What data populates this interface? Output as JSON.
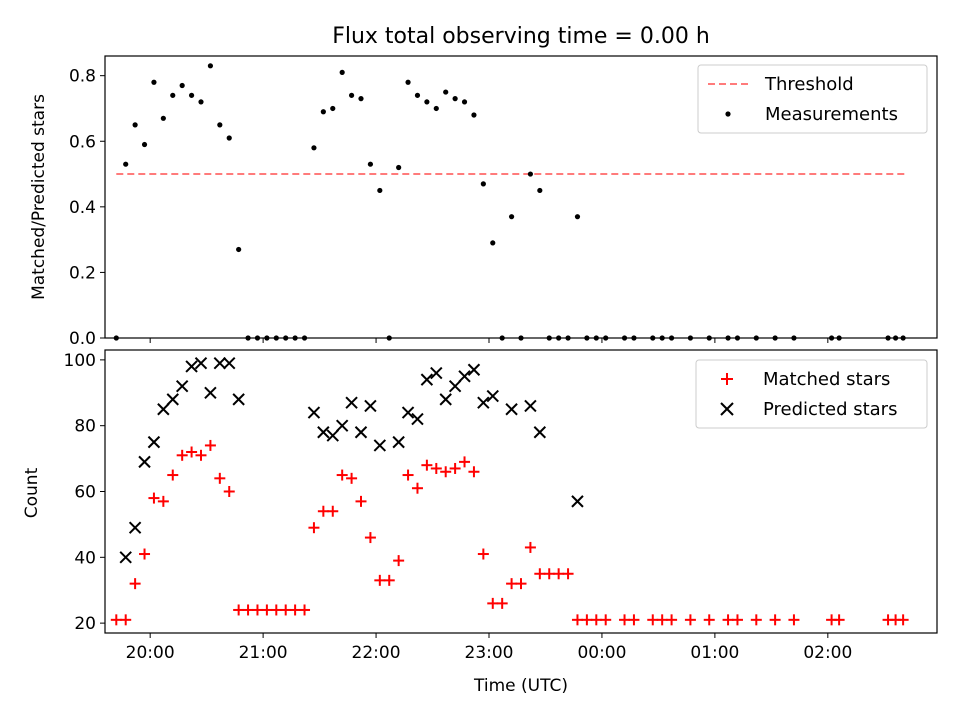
{
  "chart_data": [
    {
      "type": "scatter",
      "title": "Flux total observing time = 0.00 h",
      "ylabel": "Matched/Predicted stars",
      "ylim": [
        0,
        0.86
      ],
      "yticks": [
        "0.0",
        "0.2",
        "0.4",
        "0.6",
        "0.8"
      ],
      "legend_position": "top-right",
      "threshold": {
        "name": "Threshold",
        "value": 0.5,
        "x_start": "19:42",
        "x_end": "02:41",
        "color": "#ff7b7b",
        "style": "dashed"
      },
      "series": [
        {
          "name": "Measurements",
          "color": "#000000",
          "x": [
            "19:42",
            "19:47",
            "19:52",
            "19:57",
            "20:02",
            "20:07",
            "20:12",
            "20:17",
            "20:22",
            "20:27",
            "20:32",
            "20:37",
            "20:42",
            "20:47",
            "20:52",
            "20:57",
            "21:02",
            "21:07",
            "21:12",
            "21:17",
            "21:22",
            "21:27",
            "21:32",
            "21:37",
            "21:42",
            "21:47",
            "21:52",
            "21:57",
            "22:02",
            "22:07",
            "22:12",
            "22:17",
            "22:22",
            "22:27",
            "22:32",
            "22:37",
            "22:42",
            "22:47",
            "22:52",
            "22:57",
            "23:02",
            "23:07",
            "23:12",
            "23:17",
            "23:22",
            "23:27",
            "23:32",
            "23:37",
            "23:42",
            "23:47",
            "23:52",
            "23:57",
            "00:02",
            "00:12",
            "00:17",
            "00:27",
            "00:32",
            "00:37",
            "00:47",
            "00:57",
            "01:07",
            "01:12",
            "01:22",
            "01:32",
            "01:42",
            "02:02",
            "02:06",
            "02:32",
            "02:36",
            "02:40"
          ],
          "y": [
            0.0,
            0.53,
            0.65,
            0.59,
            0.78,
            0.67,
            0.74,
            0.77,
            0.74,
            0.72,
            0.83,
            0.65,
            0.61,
            0.27,
            0.0,
            0.0,
            0.0,
            0.0,
            0.0,
            0.0,
            0.0,
            0.58,
            0.69,
            0.7,
            0.81,
            0.74,
            0.73,
            0.53,
            0.45,
            0.0,
            0.52,
            0.78,
            0.74,
            0.72,
            0.7,
            0.75,
            0.73,
            0.72,
            0.68,
            0.47,
            0.29,
            0.0,
            0.37,
            0.0,
            0.5,
            0.45,
            0.0,
            0.0,
            0.0,
            0.37,
            0.0,
            0.0,
            0.0,
            0.0,
            0.0,
            0.0,
            0.0,
            0.0,
            0.0,
            0.0,
            0.0,
            0.0,
            0.0,
            0.0,
            0.0,
            0.0,
            0.0,
            0.0,
            0.0,
            0.0
          ]
        }
      ]
    },
    {
      "type": "scatter",
      "xlabel": "Time (UTC)",
      "ylabel": "Count",
      "ylim": [
        17,
        103
      ],
      "yticks": [
        "20",
        "40",
        "60",
        "80",
        "100"
      ],
      "xticks": [
        "20:00",
        "21:00",
        "22:00",
        "23:00",
        "00:00",
        "01:00",
        "02:00"
      ],
      "xlim": [
        "19:36",
        "02:58"
      ],
      "legend_position": "top-right",
      "series": [
        {
          "name": "Matched stars",
          "marker": "plus",
          "color": "#ff0000",
          "x": [
            "19:42",
            "19:47",
            "19:52",
            "19:57",
            "20:02",
            "20:07",
            "20:12",
            "20:17",
            "20:22",
            "20:27",
            "20:32",
            "20:37",
            "20:42",
            "20:47",
            "20:52",
            "20:57",
            "21:02",
            "21:07",
            "21:12",
            "21:17",
            "21:22",
            "21:27",
            "21:32",
            "21:37",
            "21:42",
            "21:47",
            "21:52",
            "21:57",
            "22:02",
            "22:07",
            "22:12",
            "22:17",
            "22:22",
            "22:27",
            "22:32",
            "22:37",
            "22:42",
            "22:47",
            "22:52",
            "22:57",
            "23:02",
            "23:07",
            "23:12",
            "23:17",
            "23:22",
            "23:27",
            "23:32",
            "23:37",
            "23:42",
            "23:47",
            "23:52",
            "23:57",
            "00:02",
            "00:12",
            "00:17",
            "00:27",
            "00:32",
            "00:37",
            "00:47",
            "00:57",
            "01:07",
            "01:12",
            "01:22",
            "01:32",
            "01:42",
            "02:02",
            "02:06",
            "02:32",
            "02:36",
            "02:40"
          ],
          "y": [
            21,
            21,
            32,
            41,
            58,
            57,
            65,
            71,
            72,
            71,
            74,
            64,
            60,
            24,
            24,
            24,
            24,
            24,
            24,
            24,
            24,
            49,
            54,
            54,
            65,
            64,
            57,
            46,
            33,
            33,
            39,
            65,
            61,
            68,
            67,
            66,
            67,
            69,
            66,
            41,
            26,
            26,
            32,
            32,
            43,
            35,
            35,
            35,
            35,
            21,
            21,
            21,
            21,
            21,
            21,
            21,
            21,
            21,
            21,
            21,
            21,
            21,
            21,
            21,
            21,
            21,
            21,
            21,
            21,
            21
          ]
        },
        {
          "name": "Predicted stars",
          "marker": "x",
          "color": "#000000",
          "x": [
            "19:47",
            "19:52",
            "19:57",
            "20:02",
            "20:07",
            "20:12",
            "20:17",
            "20:22",
            "20:27",
            "20:32",
            "20:37",
            "20:42",
            "20:47",
            "21:27",
            "21:32",
            "21:37",
            "21:42",
            "21:47",
            "21:52",
            "21:57",
            "22:02",
            "22:12",
            "22:17",
            "22:22",
            "22:27",
            "22:32",
            "22:37",
            "22:42",
            "22:47",
            "22:52",
            "22:57",
            "23:02",
            "23:12",
            "23:22",
            "23:27",
            "23:47"
          ],
          "y": [
            40,
            49,
            69,
            75,
            85,
            88,
            92,
            98,
            99,
            90,
            99,
            99,
            88,
            84,
            78,
            77,
            80,
            87,
            78,
            86,
            74,
            75,
            84,
            82,
            94,
            96,
            88,
            92,
            95,
            97,
            87,
            89,
            85,
            86,
            78,
            57
          ]
        }
      ]
    }
  ]
}
